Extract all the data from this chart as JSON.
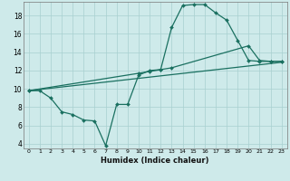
{
  "xlabel": "Humidex (Indice chaleur)",
  "bg_color": "#ceeaea",
  "grid_color": "#a8d0d0",
  "line_color": "#1a7060",
  "xlim": [
    -0.5,
    23.5
  ],
  "ylim": [
    3.5,
    19.5
  ],
  "xticks": [
    0,
    1,
    2,
    3,
    4,
    5,
    6,
    7,
    8,
    9,
    10,
    11,
    12,
    13,
    14,
    15,
    16,
    17,
    18,
    19,
    20,
    21,
    22,
    23
  ],
  "yticks": [
    4,
    6,
    8,
    10,
    12,
    14,
    16,
    18
  ],
  "line1_x": [
    0,
    1,
    2,
    3,
    4,
    5,
    6,
    7,
    8,
    9,
    10,
    11,
    12,
    13,
    14,
    15,
    16,
    17,
    18,
    19,
    20,
    21,
    22,
    23
  ],
  "line1_y": [
    9.8,
    9.8,
    9.0,
    7.5,
    7.2,
    6.6,
    6.5,
    3.8,
    8.3,
    8.3,
    11.5,
    12.0,
    12.1,
    16.7,
    19.1,
    19.2,
    19.2,
    18.3,
    17.5,
    15.3,
    13.1,
    13.0,
    13.0,
    13.0
  ],
  "line1_markers": [
    0,
    1,
    2,
    3,
    4,
    5,
    6,
    7,
    8,
    9,
    10,
    11,
    12,
    13,
    14,
    15,
    16,
    17,
    18,
    19,
    20,
    21,
    22,
    23
  ],
  "line2_x": [
    0,
    23
  ],
  "line2_y": [
    9.8,
    12.9
  ],
  "line3_x": [
    0,
    10,
    11,
    12,
    13,
    20,
    21,
    22,
    23
  ],
  "line3_y": [
    9.8,
    11.7,
    11.9,
    12.1,
    12.3,
    14.7,
    13.1,
    13.0,
    13.0
  ],
  "line3_markers": [
    0,
    10,
    11,
    12,
    13,
    20,
    21,
    22,
    23
  ]
}
